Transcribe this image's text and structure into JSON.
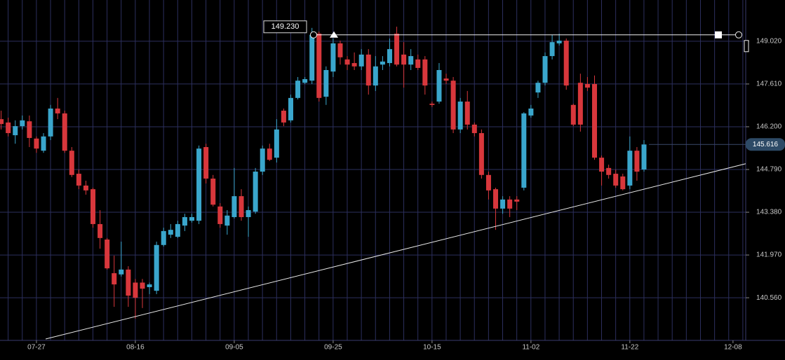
{
  "chart_data": {
    "type": "candlestick",
    "up_color": "#3aa6cc",
    "down_color": "#d8373c",
    "grid": true,
    "xlim": [
      -0.16,
      105.4
    ],
    "xticks": [
      {
        "value": 5,
        "label": "07-27"
      },
      {
        "value": 19,
        "label": "08-16"
      },
      {
        "value": 33,
        "label": "09-05"
      },
      {
        "value": 47,
        "label": "09-25"
      },
      {
        "value": 61,
        "label": "10-15"
      },
      {
        "value": 75,
        "label": "11-02"
      },
      {
        "value": 89,
        "label": "11-22"
      },
      {
        "value": 103.6,
        "label": "12-08"
      }
    ],
    "ylim": [
      139.2,
      150.38
    ],
    "yticks": [
      {
        "value": 140.56,
        "label": "140.560"
      },
      {
        "value": 141.97,
        "label": "141.970"
      },
      {
        "value": 143.38,
        "label": "143.380"
      },
      {
        "value": 144.79,
        "label": "144.790"
      },
      {
        "value": 146.2,
        "label": "146.200"
      },
      {
        "value": 147.61,
        "label": "147.610"
      },
      {
        "value": 149.02,
        "label": "149.020"
      }
    ],
    "open": [
      146.45,
      146.34,
      145.92,
      146.22,
      146.38,
      145.81,
      145.41,
      145.88,
      146.8,
      146.64,
      145.41,
      144.65,
      144.26,
      144.14,
      142.99,
      142.48,
      141.37,
      141.33,
      141.49,
      141.06,
      141.06,
      140.91,
      140.79,
      142.3,
      142.64,
      142.57,
      142.94,
      143.1,
      143.1,
      145.53,
      144.49,
      143.57,
      142.94,
      143.22,
      143.91,
      143.22,
      143.4,
      144.72,
      145.48,
      145.18,
      146.73,
      146.41,
      147.15,
      147.65,
      147.72,
      149.27,
      147.19,
      148.02,
      148.95,
      148.42,
      148.3,
      148.19,
      148.58,
      147.56,
      148.25,
      148.3,
      149.27,
      148.58,
      148.25,
      148.42,
      148.42,
      146.96,
      147.03,
      147.79,
      147.72,
      146.11,
      147.03,
      146.27,
      145.99,
      144.61,
      144.14,
      143.5,
      143.8,
      143.8,
      144.19,
      146.57,
      147.33,
      147.65,
      148.53,
      148.95,
      149.04,
      146.92,
      147.65,
      147.61,
      147.61,
      145.18,
      144.84,
      144.65,
      144.56,
      144.26,
      145.41,
      144.79
    ],
    "high": [
      146.73,
      146.5,
      146.41,
      146.57,
      146.57,
      145.88,
      145.99,
      146.92,
      147.15,
      146.73,
      145.53,
      144.79,
      144.42,
      144.19,
      143.45,
      142.53,
      141.95,
      142.41,
      141.6,
      141.18,
      141.18,
      141.06,
      142.41,
      142.87,
      142.99,
      143.1,
      143.33,
      143.33,
      145.58,
      145.64,
      144.61,
      143.68,
      143.45,
      144.84,
      144.14,
      143.57,
      144.84,
      145.58,
      145.64,
      146.45,
      146.8,
      147.26,
      147.84,
      147.84,
      149.46,
      149.34,
      148.19,
      149.11,
      149.04,
      148.53,
      148.65,
      148.76,
      148.76,
      148.53,
      148.53,
      149.11,
      149.5,
      148.99,
      148.76,
      148.58,
      148.53,
      147.03,
      148.3,
      147.95,
      147.84,
      147.15,
      147.38,
      146.34,
      146.11,
      144.72,
      144.19,
      143.91,
      143.91,
      143.91,
      146.68,
      146.92,
      147.72,
      148.65,
      149.23,
      149.27,
      149.11,
      146.96,
      147.95,
      147.84,
      147.89,
      145.25,
      144.95,
      144.79,
      144.65,
      145.88,
      145.53,
      145.76
    ],
    "low": [
      146.11,
      145.88,
      145.64,
      146.11,
      145.53,
      145.34,
      145.34,
      145.76,
      146.45,
      145.34,
      144.54,
      144.14,
      143.96,
      142.87,
      142.18,
      141.49,
      140.26,
      141.26,
      140.26,
      139.87,
      140.22,
      140.68,
      140.68,
      142.25,
      142.53,
      142.53,
      142.76,
      143.04,
      142.99,
      144.33,
      143.57,
      142.87,
      142.64,
      143.17,
      143.1,
      142.57,
      143.33,
      144.61,
      145.07,
      145.02,
      146.22,
      146.34,
      147.1,
      147.61,
      147.61,
      147.03,
      146.92,
      147.84,
      148.25,
      148.07,
      148.07,
      148.07,
      147.26,
      147.38,
      148.07,
      148.19,
      148.19,
      147.49,
      148.07,
      148.07,
      147.26,
      146.85,
      146.96,
      147.61,
      145.99,
      145.99,
      146.11,
      145.88,
      144.49,
      143.8,
      142.8,
      143.33,
      143.22,
      143.45,
      144.1,
      146.5,
      147.15,
      147.56,
      148.42,
      148.88,
      147.42,
      146.22,
      146.04,
      147.38,
      145.11,
      144.26,
      144.49,
      144.19,
      144.1,
      144.14,
      144.42,
      144.72
    ],
    "close": [
      146.29,
      145.99,
      146.22,
      146.41,
      145.83,
      145.48,
      145.88,
      146.8,
      146.64,
      145.41,
      144.61,
      144.26,
      144.1,
      142.99,
      142.53,
      141.53,
      141.0,
      141.49,
      140.63,
      140.56,
      140.86,
      141.0,
      142.3,
      142.76,
      142.8,
      142.99,
      143.22,
      143.22,
      145.48,
      144.49,
      143.63,
      142.99,
      143.27,
      143.91,
      143.22,
      143.45,
      144.72,
      145.48,
      145.11,
      146.11,
      146.34,
      147.15,
      147.72,
      147.77,
      149.23,
      147.15,
      148.07,
      148.95,
      148.49,
      148.25,
      148.19,
      148.58,
      147.56,
      148.19,
      148.35,
      148.76,
      148.25,
      148.25,
      148.53,
      148.14,
      147.56,
      146.92,
      148.07,
      147.72,
      146.11,
      147.03,
      146.27,
      145.99,
      144.61,
      144.1,
      143.5,
      143.8,
      143.5,
      143.73,
      146.64,
      146.8,
      147.65,
      148.53,
      148.99,
      149.04,
      147.56,
      146.27,
      146.27,
      147.49,
      145.18,
      144.72,
      144.61,
      144.26,
      144.14,
      145.41,
      144.72,
      145.616
    ],
    "hline": {
      "value": 149.23,
      "label": "149.230"
    },
    "last_price": {
      "value": 145.616,
      "label": "145.616"
    },
    "trendline": {
      "x": [
        6.3,
        105.4
      ],
      "y": [
        139.2,
        144.98
      ]
    }
  }
}
